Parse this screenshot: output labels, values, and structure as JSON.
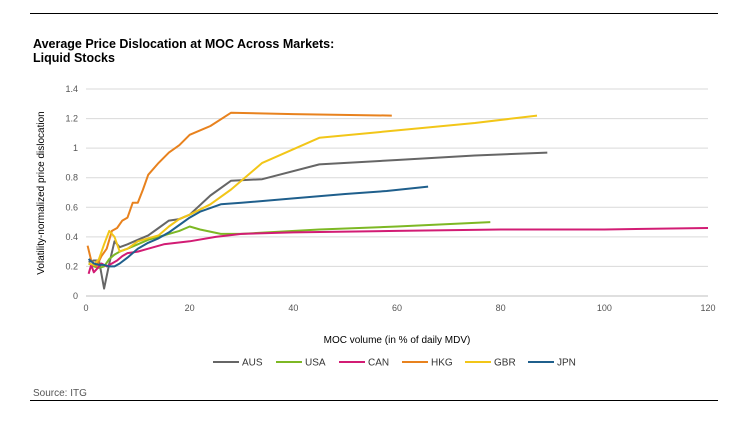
{
  "title_line1": "Average Price Dislocation at MOC Across Markets:",
  "title_line2": "Liquid Stocks",
  "source": "Source: ITG",
  "chart_data": {
    "type": "line",
    "title": "Average Price Dislocation at MOC Across Markets: Liquid Stocks",
    "xlabel": "MOC volume (in % of daily MDV)",
    "ylabel": "Volatility-normalized price dislocation",
    "xlim": [
      0,
      120
    ],
    "ylim": [
      0,
      1.4
    ],
    "xticks": [
      0,
      20,
      40,
      60,
      80,
      100,
      120
    ],
    "yticks": [
      0,
      0.2,
      0.4,
      0.6,
      0.8,
      1,
      1.2,
      1.4
    ],
    "ytick_labels": [
      "0",
      "0.2",
      "0.4",
      "0.6",
      "0.8",
      "1",
      "1.2",
      "1.4"
    ],
    "grid": "horizontal",
    "legend_position": "bottom",
    "series": [
      {
        "name": "AUS",
        "color": "#666666",
        "x": [
          0.5,
          1.5,
          2.5,
          3.5,
          4.5,
          5.5,
          6.5,
          8,
          10,
          12,
          14,
          16,
          18,
          20,
          24,
          28,
          34,
          45,
          60,
          75,
          89
        ],
        "y": [
          0.23,
          0.24,
          0.24,
          0.05,
          0.22,
          0.37,
          0.33,
          0.35,
          0.38,
          0.41,
          0.46,
          0.51,
          0.52,
          0.55,
          0.68,
          0.78,
          0.79,
          0.89,
          0.92,
          0.95,
          0.97
        ]
      },
      {
        "name": "USA",
        "color": "#7db824",
        "x": [
          0.5,
          1.5,
          2.5,
          3.5,
          4.5,
          5.5,
          6.5,
          8,
          10,
          12,
          14,
          16,
          18,
          20,
          22,
          26,
          30,
          35,
          45,
          60,
          78
        ],
        "y": [
          0.22,
          0.2,
          0.19,
          0.2,
          0.25,
          0.28,
          0.3,
          0.32,
          0.35,
          0.38,
          0.4,
          0.42,
          0.44,
          0.47,
          0.45,
          0.42,
          0.42,
          0.43,
          0.45,
          0.47,
          0.5
        ]
      },
      {
        "name": "CAN",
        "color": "#d21c74",
        "x": [
          0.5,
          1,
          1.5,
          2,
          3,
          4,
          5,
          6,
          7,
          8,
          10,
          12,
          15,
          20,
          25,
          30,
          40,
          60,
          80,
          100,
          120
        ],
        "y": [
          0.15,
          0.21,
          0.16,
          0.18,
          0.22,
          0.2,
          0.22,
          0.24,
          0.27,
          0.29,
          0.3,
          0.32,
          0.35,
          0.37,
          0.4,
          0.42,
          0.43,
          0.44,
          0.45,
          0.45,
          0.46
        ]
      },
      {
        "name": "HKG",
        "color": "#e8821e",
        "x": [
          0.3,
          1,
          2,
          3,
          4,
          5,
          6,
          7,
          8,
          9,
          10,
          11,
          12,
          14,
          16,
          18,
          20,
          24,
          28,
          40,
          59
        ],
        "y": [
          0.34,
          0.24,
          0.2,
          0.27,
          0.32,
          0.44,
          0.46,
          0.51,
          0.53,
          0.63,
          0.63,
          0.72,
          0.82,
          0.9,
          0.97,
          1.02,
          1.09,
          1.15,
          1.24,
          1.23,
          1.22
        ]
      },
      {
        "name": "GBR",
        "color": "#f2c618",
        "x": [
          0.5,
          1.5,
          2.5,
          3.5,
          4.5,
          5.5,
          6.5,
          8,
          10,
          12,
          14,
          16,
          18,
          20,
          24,
          28,
          34,
          45,
          60,
          75,
          87
        ],
        "y": [
          0.22,
          0.21,
          0.25,
          0.35,
          0.44,
          0.4,
          0.3,
          0.32,
          0.37,
          0.39,
          0.41,
          0.47,
          0.52,
          0.55,
          0.62,
          0.72,
          0.9,
          1.07,
          1.12,
          1.17,
          1.22
        ]
      },
      {
        "name": "JPN",
        "color": "#1f5f8c",
        "x": [
          0.5,
          1.5,
          2.5,
          3.5,
          4.5,
          5.5,
          6.5,
          8,
          10,
          12,
          14,
          16,
          18,
          20,
          22,
          26,
          30,
          40,
          50,
          58,
          66
        ],
        "y": [
          0.25,
          0.22,
          0.21,
          0.21,
          0.2,
          0.2,
          0.22,
          0.26,
          0.32,
          0.36,
          0.39,
          0.43,
          0.48,
          0.53,
          0.57,
          0.62,
          0.63,
          0.66,
          0.69,
          0.71,
          0.74
        ]
      }
    ]
  }
}
